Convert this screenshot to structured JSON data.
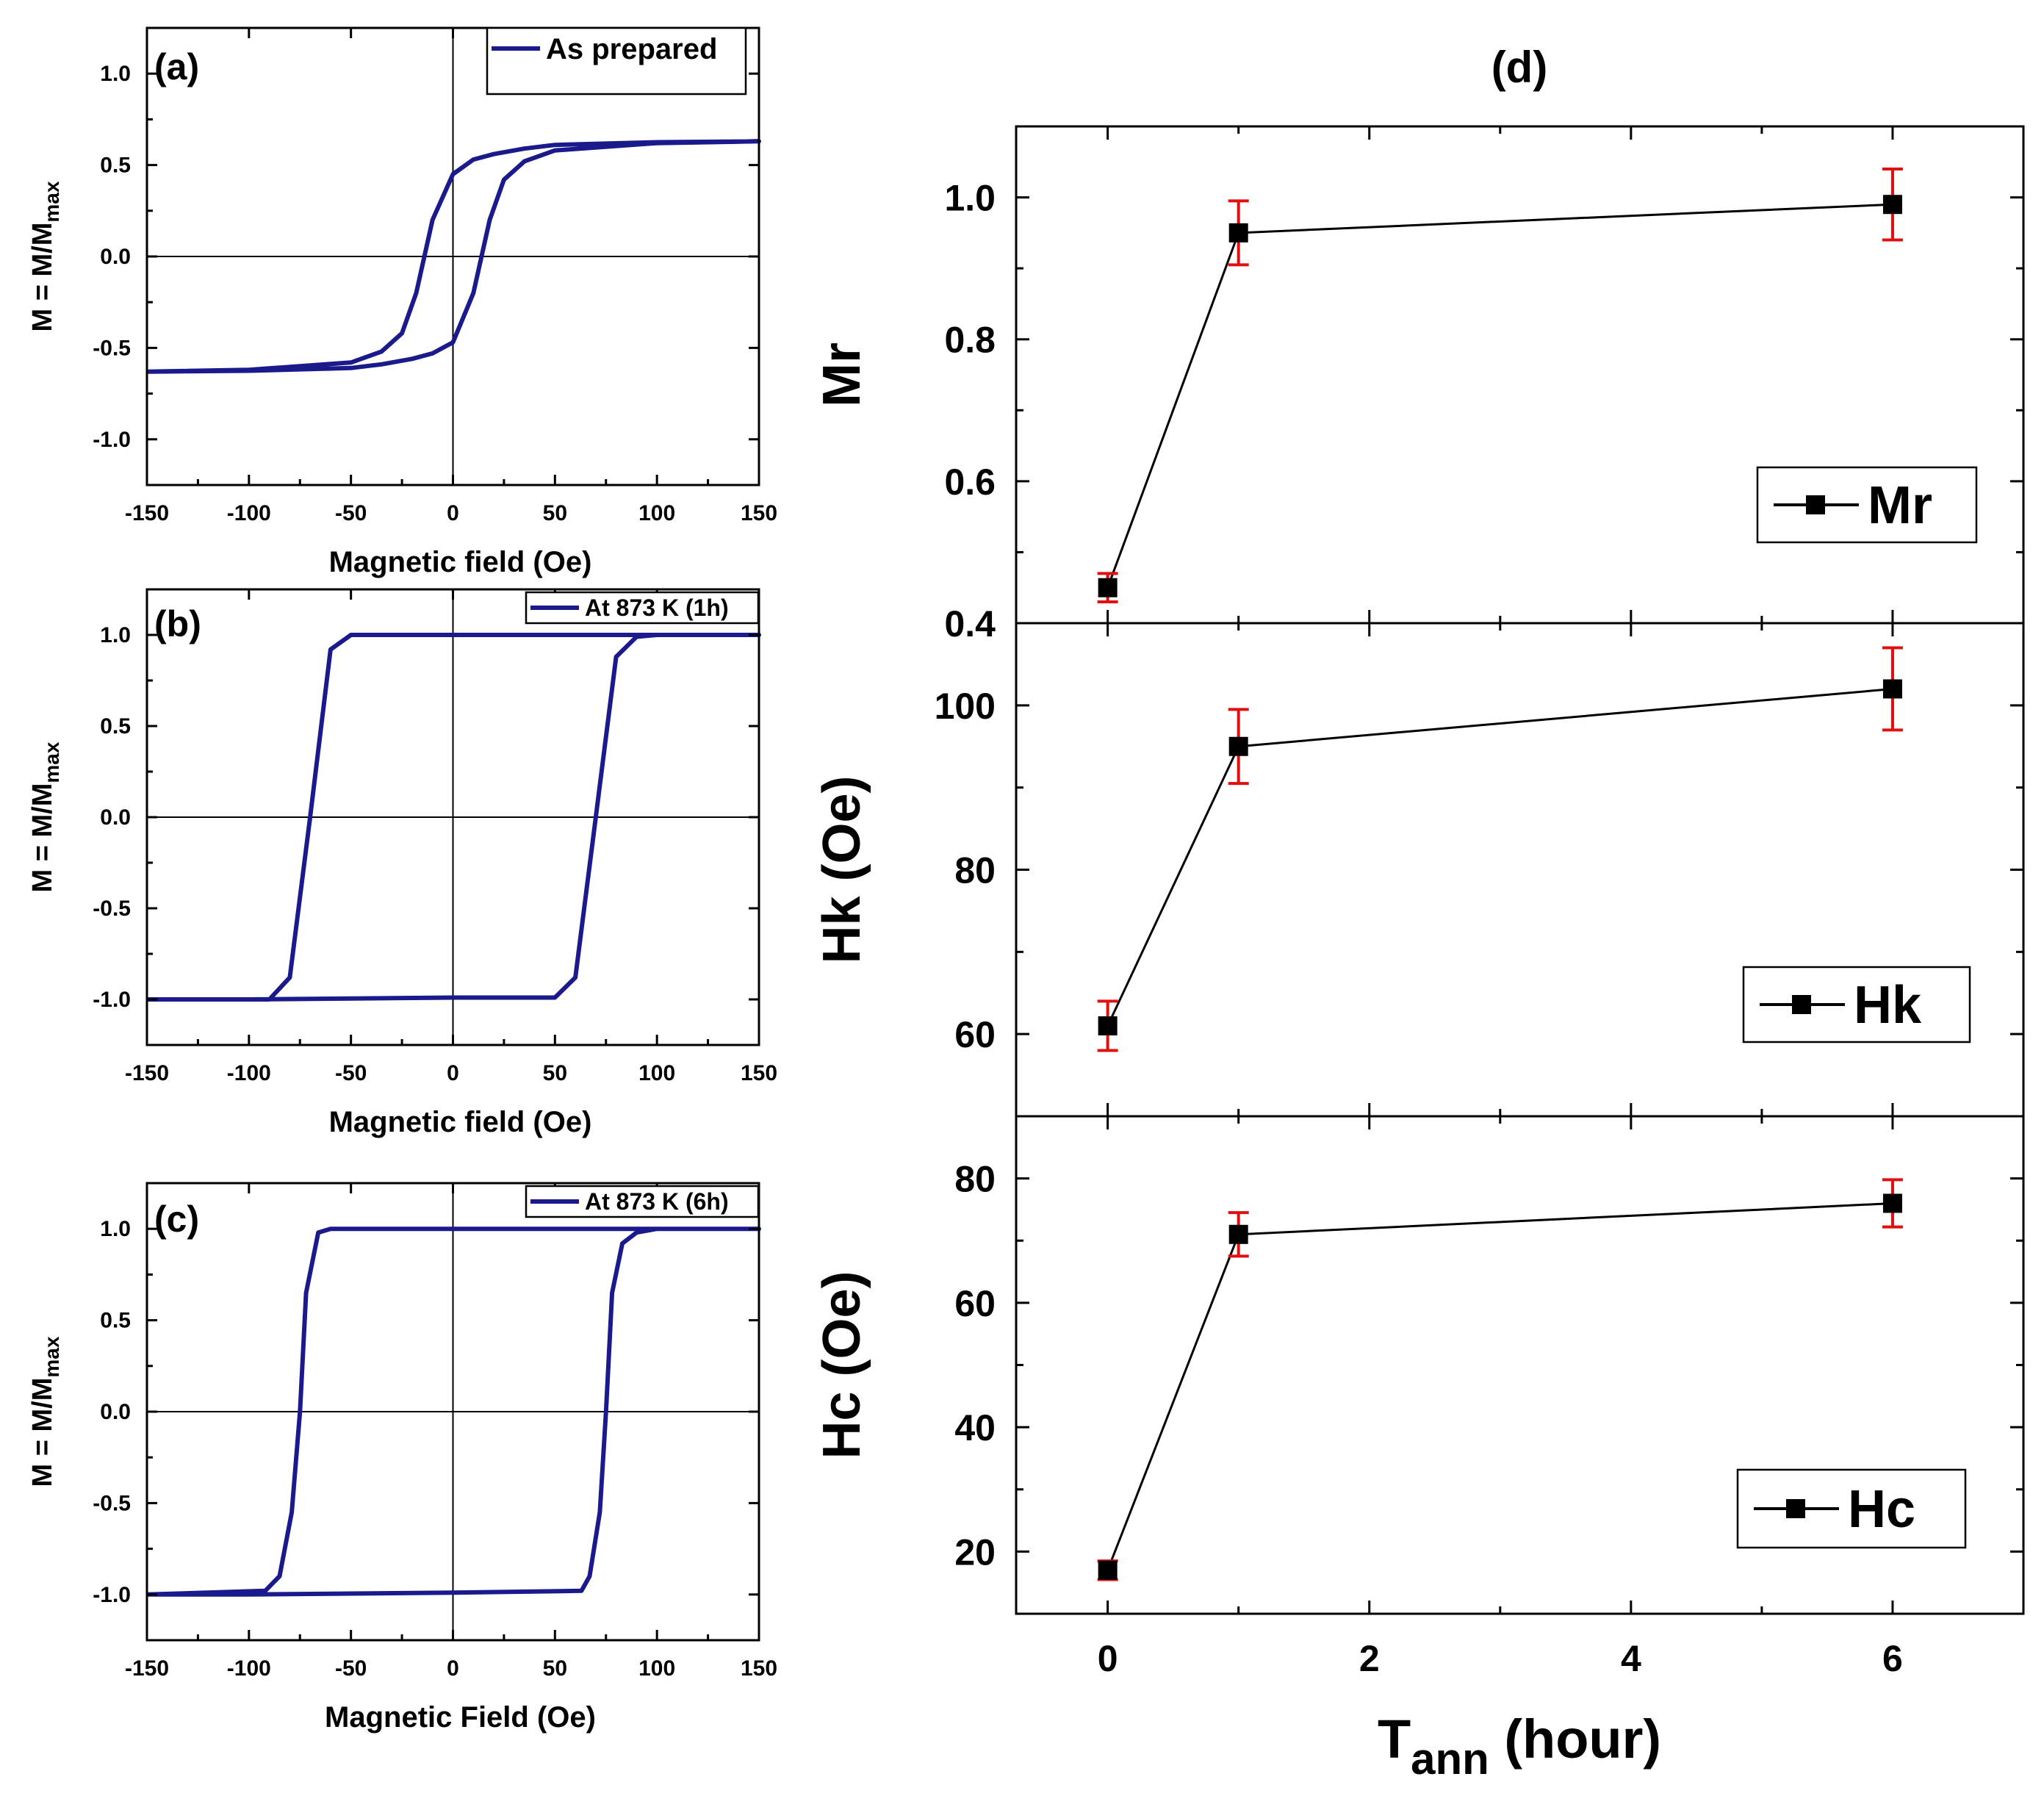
{
  "chart_data": [
    {
      "id": "a",
      "type": "line",
      "panel_label": "(a)",
      "xlabel": "Magnetic field (Oe)",
      "ylabel": "M = M/M",
      "ylabel_sub": "max",
      "xlim": [
        -150,
        150
      ],
      "ylim": [
        -1.25,
        1.25
      ],
      "xticks": [
        -150,
        -100,
        -50,
        0,
        50,
        100,
        150
      ],
      "yticks": [
        -1.0,
        -0.5,
        0.0,
        0.5,
        1.0
      ],
      "ytick_labels": [
        "-1.0",
        "-0.5",
        "0.0",
        "0.5",
        "1.0"
      ],
      "series": [
        {
          "name": "As prepared",
          "color": "#1a1a8c",
          "x": [
            -150,
            -100,
            -50,
            -35,
            -25,
            -18,
            -10,
            0,
            10,
            20,
            35,
            50,
            100,
            150,
            100,
            50,
            35,
            25,
            18,
            10,
            0,
            -10,
            -20,
            -35,
            -50,
            -100,
            -150
          ],
          "y": [
            -0.63,
            -0.62,
            -0.58,
            -0.52,
            -0.42,
            -0.2,
            0.2,
            0.45,
            0.53,
            0.56,
            0.59,
            0.61,
            0.625,
            0.63,
            0.62,
            0.58,
            0.52,
            0.42,
            0.2,
            -0.2,
            -0.47,
            -0.53,
            -0.56,
            -0.59,
            -0.61,
            -0.625,
            -0.63
          ]
        }
      ]
    },
    {
      "id": "b",
      "type": "line",
      "panel_label": "(b)",
      "xlabel": "Magnetic field (Oe)",
      "ylabel": "M = M/M",
      "ylabel_sub": "max",
      "xlim": [
        -150,
        150
      ],
      "ylim": [
        -1.25,
        1.25
      ],
      "xticks": [
        -150,
        -100,
        -50,
        0,
        50,
        100,
        150
      ],
      "yticks": [
        -1.0,
        -0.5,
        0.0,
        0.5,
        1.0
      ],
      "ytick_labels": [
        "-1.0",
        "-0.5",
        "0.0",
        "0.5",
        "1.0"
      ],
      "series": [
        {
          "name": "At 873 K (1h)",
          "color": "#1a1a8c",
          "x": [
            -150,
            -100,
            0,
            50,
            60,
            70,
            80,
            90,
            100,
            150,
            100,
            0,
            -50,
            -60,
            -70,
            -80,
            -90,
            -150
          ],
          "y": [
            -1.0,
            -1.0,
            -0.99,
            -0.99,
            -0.88,
            0.0,
            0.88,
            0.99,
            1.0,
            1.0,
            1.0,
            1.0,
            1.0,
            0.92,
            0.0,
            -0.88,
            -1.0,
            -1.0
          ]
        }
      ]
    },
    {
      "id": "c",
      "type": "line",
      "panel_label": "(c)",
      "xlabel": "Magnetic Field (Oe)",
      "ylabel": "M = M/M",
      "ylabel_sub": "max",
      "xlim": [
        -150,
        150
      ],
      "ylim": [
        -1.25,
        1.25
      ],
      "xticks": [
        -150,
        -100,
        -50,
        0,
        50,
        100,
        150
      ],
      "yticks": [
        -1.0,
        -0.5,
        0.0,
        0.5,
        1.0
      ],
      "ytick_labels": [
        "-1.0",
        "-0.5",
        "0.0",
        "0.5",
        "1.0"
      ],
      "series": [
        {
          "name": "At 873 K (6h)",
          "color": "#1a1a8c",
          "x": [
            -150,
            -100,
            0,
            63,
            67,
            72,
            75,
            78,
            83,
            90,
            100,
            150,
            100,
            0,
            -60,
            -66,
            -72,
            -75,
            -79,
            -85,
            -92,
            -150
          ],
          "y": [
            -1.0,
            -1.0,
            -0.99,
            -0.98,
            -0.9,
            -0.55,
            0.0,
            0.65,
            0.92,
            0.98,
            1.0,
            1.0,
            1.0,
            1.0,
            1.0,
            0.98,
            0.65,
            0.0,
            -0.55,
            -0.9,
            -0.98,
            -1.0
          ]
        }
      ]
    },
    {
      "id": "d-mr",
      "type": "scatter",
      "panel_label": "(d)",
      "ylabel": "Mr",
      "xlim": [
        -0.7,
        7.0
      ],
      "ylim": [
        0.4,
        1.1
      ],
      "yticks": [
        0.4,
        0.6,
        0.8,
        1.0
      ],
      "ytick_labels": [
        "0.4",
        "0.6",
        "0.8",
        "1.0"
      ],
      "series": [
        {
          "name": "Mr",
          "x": [
            0,
            1,
            6
          ],
          "y": [
            0.45,
            0.95,
            0.99
          ],
          "err": [
            0.02,
            0.045,
            0.05
          ]
        }
      ]
    },
    {
      "id": "d-hk",
      "type": "scatter",
      "ylabel": "Hk (Oe)",
      "xlim": [
        -0.7,
        7.0
      ],
      "ylim": [
        50,
        110
      ],
      "yticks": [
        60,
        80,
        100
      ],
      "ytick_labels": [
        "60",
        "80",
        "100"
      ],
      "series": [
        {
          "name": "Hk",
          "x": [
            0,
            1,
            6
          ],
          "y": [
            61,
            95,
            102
          ],
          "err": [
            3,
            4.5,
            5
          ]
        }
      ]
    },
    {
      "id": "d-hc",
      "type": "scatter",
      "ylabel": "Hc (Oe)",
      "xlabel_main": "T",
      "xlabel_sub": "ann",
      "xlabel_rest": " (hour)",
      "xlim": [
        -0.7,
        7.0
      ],
      "ylim": [
        10,
        90
      ],
      "xticks": [
        0,
        2,
        4,
        6
      ],
      "yticks": [
        20,
        40,
        60,
        80
      ],
      "ytick_labels": [
        "20",
        "40",
        "60",
        "80"
      ],
      "series": [
        {
          "name": "Hc",
          "x": [
            0,
            1,
            6
          ],
          "y": [
            17,
            71,
            76
          ],
          "err": [
            1.5,
            3.5,
            3.8
          ]
        }
      ]
    }
  ]
}
